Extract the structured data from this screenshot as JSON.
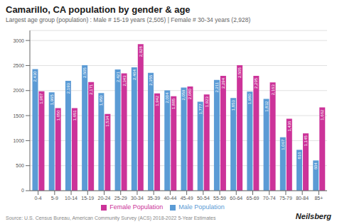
{
  "chart_data": {
    "type": "bar",
    "title": "Camarillo, CA population by gender & age",
    "subtitle": "Largest age group (population) : Male # 15-19 years (2,505) | Female # 30-34 years (2,928)",
    "annotations": [
      "Source: U.S. Census Bureau, American Community Survey (ACS) 2018-2022 5-Year Estimates",
      "Neilsberg"
    ],
    "categories": [
      "0-4",
      "5-9",
      "10-14",
      "15-19",
      "20-24",
      "25-29",
      "30-34",
      "35-39",
      "40-44",
      "45-49",
      "50-54",
      "55-59",
      "60-64",
      "65-69",
      "70-74",
      "75-79",
      "80-84",
      "85+"
    ],
    "series": [
      {
        "name": "Male Population",
        "color": "#5b9bd5",
        "values": [
          2430,
          1965,
          2193,
          2505,
          1950,
          2421,
          2464,
          2355,
          2004,
          2059,
          1777,
          2211,
          1853,
          1980,
          1832,
          1067,
          816,
          604
        ],
        "value_labels": [
          "2,430",
          "1,965",
          "2,193",
          "2,505",
          "1,950",
          "2,421",
          "2,464",
          "2,355",
          "2,004",
          "2,059",
          "1,777",
          "2,211",
          "1,853",
          "1,980",
          "1,832",
          "1,067",
          "816",
          "604"
        ]
      },
      {
        "name": "Female Population",
        "color": "#cc3399",
        "values": [
          1987,
          1650,
          1651,
          2171,
          1534,
          2343,
          2928,
          1942,
          1885,
          2080,
          1923,
          2294,
          2505,
          2295,
          2163,
          1436,
          1145,
          1662
        ],
        "value_labels": [
          "1,987",
          "1,650",
          "1,651",
          "2,171",
          "1,534",
          "2,343",
          "2,928",
          "1,942",
          "1,885",
          "2,080",
          "1,923",
          "2,294",
          "2,505",
          "2,295",
          "2,163",
          "1,436",
          "1,145",
          "1,662"
        ]
      }
    ],
    "ylim": [
      0,
      3200
    ],
    "yticks": [
      0,
      500,
      1000,
      1500,
      2000,
      2500,
      3000
    ],
    "grid": true,
    "legend": "bottom",
    "data_labels": true
  }
}
